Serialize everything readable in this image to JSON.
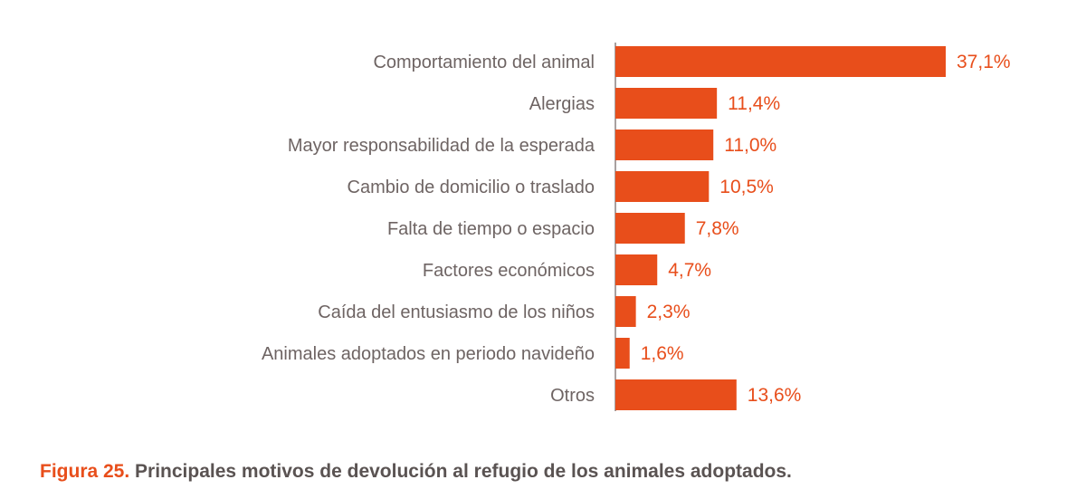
{
  "chart_data": {
    "type": "bar",
    "orientation": "horizontal",
    "categories": [
      "Comportamiento del animal",
      "Alergias",
      "Mayor responsabilidad de la esperada",
      "Cambio de domicilio o traslado",
      "Falta de tiempo o espacio",
      "Factores económicos",
      "Caída del entusiasmo de los niños",
      "Animales adoptados en periodo navideño",
      "Otros"
    ],
    "values": [
      37.1,
      11.4,
      11.0,
      10.5,
      7.8,
      4.7,
      2.3,
      1.6,
      13.6
    ],
    "value_labels": [
      "37,1%",
      "11,4%",
      "11,0%",
      "10,5%",
      "7,8%",
      "4,7%",
      "2,3%",
      "1,6%",
      "13,6%"
    ],
    "title": "",
    "xlabel": "",
    "ylabel": "",
    "xlim": [
      0,
      37.1
    ],
    "grid": false,
    "legend": "none",
    "colors": {
      "bar": "#e84e1b",
      "axis": "#8c8281",
      "category_text": "#6e6463",
      "value_text": "#e84e1b"
    }
  },
  "caption": {
    "prefix": "Figura 25.",
    "text": " Principales motivos de devolución al refugio de los animales adoptados.",
    "prefix_color": "#e84e1b",
    "text_color": "#5a5352"
  }
}
